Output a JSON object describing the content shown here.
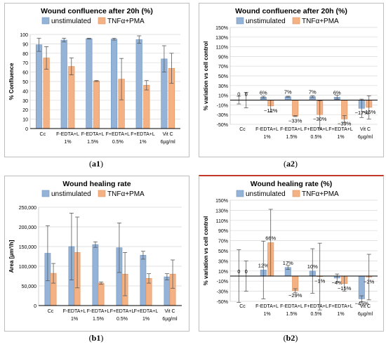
{
  "colors": {
    "unstimulated": "#95b3d7",
    "tnf": "#f4b183",
    "edge_unstim": "#6f94c2",
    "edge_tnf": "#e08f57",
    "axis": "#000000",
    "grid": "#d9d9d9",
    "err": "#595959"
  },
  "captions": {
    "a1": "a1",
    "a2": "a2",
    "b1": "b1",
    "b2": "b2"
  },
  "chart_data": [
    {
      "id": "a1",
      "type": "bar",
      "title": "Wound confluence after 20h (%)",
      "ylabel": "% Confluence",
      "categories": [
        "Cc",
        "F-EDTA+L 1%",
        "F-EDTA+L 1.5%",
        "F+EDTA+L 0.5%",
        "F+EDTA+L 1%",
        "Vit C 6µg/ml"
      ],
      "series": [
        {
          "name": "unstimulated",
          "values": [
            89,
            94,
            95.5,
            95,
            94.5,
            74
          ],
          "errors": [
            7,
            2,
            0.5,
            1,
            4,
            14
          ]
        },
        {
          "name": "TNFα+PMA",
          "values": [
            75,
            66,
            50.5,
            52.5,
            46,
            64
          ],
          "errors": [
            12,
            9,
            0.5,
            22,
            5,
            16
          ]
        }
      ],
      "ylim": [
        0,
        100
      ],
      "yticks": [
        "0",
        "10",
        "20",
        "30",
        "40",
        "50",
        "60",
        "70",
        "80",
        "90",
        "100"
      ],
      "ytick_values": [
        0,
        10,
        20,
        30,
        40,
        50,
        60,
        70,
        80,
        90,
        100
      ],
      "grid": true,
      "legend": "top"
    },
    {
      "id": "a2",
      "type": "bar",
      "title": "Wound confluence after 20h (%)",
      "ylabel": "% variation vs cell control",
      "categories": [
        "Cc",
        "F-EDTA+L 1%",
        "F-EDTA+L 1.5%",
        "F+EDTA+L 0.5%",
        "F+EDTA+L 1%",
        "Vit C 6µg/ml"
      ],
      "series": [
        {
          "name": "unstimulated",
          "values": [
            0,
            6,
            7,
            7,
            6,
            -17
          ],
          "labels": [
            "0",
            "6%",
            "7%",
            "7%",
            "6%",
            "−17%"
          ],
          "errors": [
            8,
            2,
            1,
            2,
            4,
            19
          ]
        },
        {
          "name": "TNFα+PMA",
          "values": [
            0,
            -12,
            -33,
            -30,
            -39,
            -15
          ],
          "labels": [
            "0",
            "−12%",
            "−33%",
            "−30%",
            "−39%",
            "−15%"
          ],
          "errors": [
            16,
            12,
            1,
            29,
            7,
            24
          ]
        }
      ],
      "ylim": [
        -50,
        150
      ],
      "yticks": [
        "-50%",
        "-30%",
        "-10%",
        "10%",
        "30%",
        "50%",
        "70%",
        "90%",
        "110%",
        "130%",
        "150%"
      ],
      "ytick_values": [
        -50,
        -30,
        -10,
        10,
        30,
        50,
        70,
        90,
        110,
        130,
        150
      ],
      "grid": true,
      "legend": "top"
    },
    {
      "id": "b1",
      "type": "bar",
      "title": "Wound healing rate",
      "ylabel": "Area [µm²/h]",
      "categories": [
        "Cc",
        "F-EDTA+L 1%",
        "F-EDTA+L 1.5%",
        "F+EDTA+L 0.5%",
        "F+EDTA+L 1%",
        "Vit C 6µg/ml"
      ],
      "series": [
        {
          "name": "unstimulated",
          "values": [
            133000,
            150000,
            155000,
            147000,
            128000,
            73000
          ],
          "errors": [
            70000,
            85000,
            7000,
            63000,
            10000,
            8000
          ]
        },
        {
          "name": "TNFα+PMA",
          "values": [
            82000,
            135000,
            57000,
            80000,
            69000,
            80000
          ],
          "errors": [
            25000,
            90000,
            3000,
            55000,
            12000,
            36000
          ]
        }
      ],
      "ylim": [
        0,
        250000
      ],
      "yticks": [
        "0",
        "50,000",
        "100,000",
        "150,000",
        "200,000",
        "250,000"
      ],
      "ytick_values": [
        0,
        50000,
        100000,
        150000,
        200000,
        250000
      ],
      "grid": true,
      "legend": "top"
    },
    {
      "id": "b2",
      "type": "bar",
      "title": "Wound healing rate (%)",
      "ylabel": "% variation vs cell control",
      "categories": [
        "Cc",
        "F-EDTA+L 1%",
        "F-EDTA+L 1.5%",
        "F+EDTA+L 0.5%",
        "F+EDTA+L 1%",
        "Vit C 6µg/ml"
      ],
      "series": [
        {
          "name": "unstimulated",
          "values": [
            0,
            12,
            17,
            10,
            -4,
            -45
          ],
          "labels": [
            "0",
            "12%",
            "17%",
            "10%",
            "−4%",
            "−45%"
          ],
          "errors": [
            52,
            57,
            4,
            44,
            8,
            6
          ]
        },
        {
          "name": "TNFα+PMA",
          "values": [
            0,
            66,
            -29,
            -1,
            -15,
            -2
          ],
          "labels": [
            "0",
            "66%",
            "−29%",
            "−1%",
            "−15%",
            "−2%"
          ],
          "errors": [
            30,
            66,
            4,
            66,
            15,
            45
          ]
        }
      ],
      "ylim": [
        -50,
        150
      ],
      "yticks": [
        "-50%",
        "-30%",
        "-10%",
        "10%",
        "30%",
        "50%",
        "70%",
        "90%",
        "110%",
        "130%",
        "150%"
      ],
      "ytick_values": [
        -50,
        -30,
        -10,
        10,
        30,
        50,
        70,
        90,
        110,
        130,
        150
      ],
      "grid": true,
      "legend": "top"
    }
  ]
}
